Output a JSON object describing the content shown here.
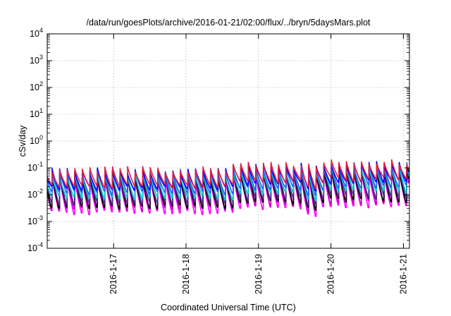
{
  "chart_data": {
    "type": "line",
    "title": "/data/run/goesPlots/archive/2016-01-21/02:00/flux/../bryn/5daysMars.plot",
    "xlabel": "Coordinated Universal Time (UTC)",
    "ylabel": "cSv/day",
    "y_scale": "log",
    "ylim": [
      0.0001,
      10000
    ],
    "xlim": [
      "2016-01-16 02:00",
      "2016-01-21 02:00"
    ],
    "grid": true,
    "y_ticks": [
      {
        "base": "10",
        "exp": "-4"
      },
      {
        "base": "10",
        "exp": "-3"
      },
      {
        "base": "10",
        "exp": "-2"
      },
      {
        "base": "10",
        "exp": "-1"
      },
      {
        "base": "10",
        "exp": "0"
      },
      {
        "base": "10",
        "exp": "1"
      },
      {
        "base": "10",
        "exp": "2"
      },
      {
        "base": "10",
        "exp": "3"
      },
      {
        "base": "10",
        "exp": "4"
      }
    ],
    "x_ticks": [
      {
        "label": "2016-1-17",
        "time": "2016-01-17 00:00"
      },
      {
        "label": "2016-1-18",
        "time": "2016-01-18 00:00"
      },
      {
        "label": "2016-1-19",
        "time": "2016-01-19 00:00"
      },
      {
        "label": "2016-1-20",
        "time": "2016-01-20 00:00"
      },
      {
        "label": "2016-1-21",
        "time": "2016-01-21 00:00"
      }
    ],
    "series_colors": [
      "#ff00ff",
      "#cc00cc",
      "#000000",
      "#4a2a8a",
      "#00cccc",
      "#2060ff",
      "#0000ff",
      "#e02040"
    ],
    "cycle_hours": 2.5,
    "series": [
      {
        "color": "#ff00ff",
        "peak_level": 0.045,
        "trough_level": 0.0022,
        "jitter_seed": 3
      },
      {
        "color": "#cc00cc",
        "peak_level": 0.05,
        "trough_level": 0.003,
        "jitter_seed": 7
      },
      {
        "color": "#000000",
        "peak_level": 0.055,
        "trough_level": 0.0035,
        "jitter_seed": 11
      },
      {
        "color": "#4a2a8a",
        "peak_level": 0.062,
        "trough_level": 0.005,
        "jitter_seed": 13
      },
      {
        "color": "#00cccc",
        "peak_level": 0.06,
        "trough_level": 0.008,
        "jitter_seed": 17
      },
      {
        "color": "#2060ff",
        "peak_level": 0.075,
        "trough_level": 0.012,
        "jitter_seed": 19
      },
      {
        "color": "#0000ff",
        "peak_level": 0.08,
        "trough_level": 0.018,
        "jitter_seed": 23
      },
      {
        "color": "#e02040",
        "peak_level": 0.09,
        "trough_level": 0.022,
        "jitter_seed": 29
      }
    ]
  }
}
